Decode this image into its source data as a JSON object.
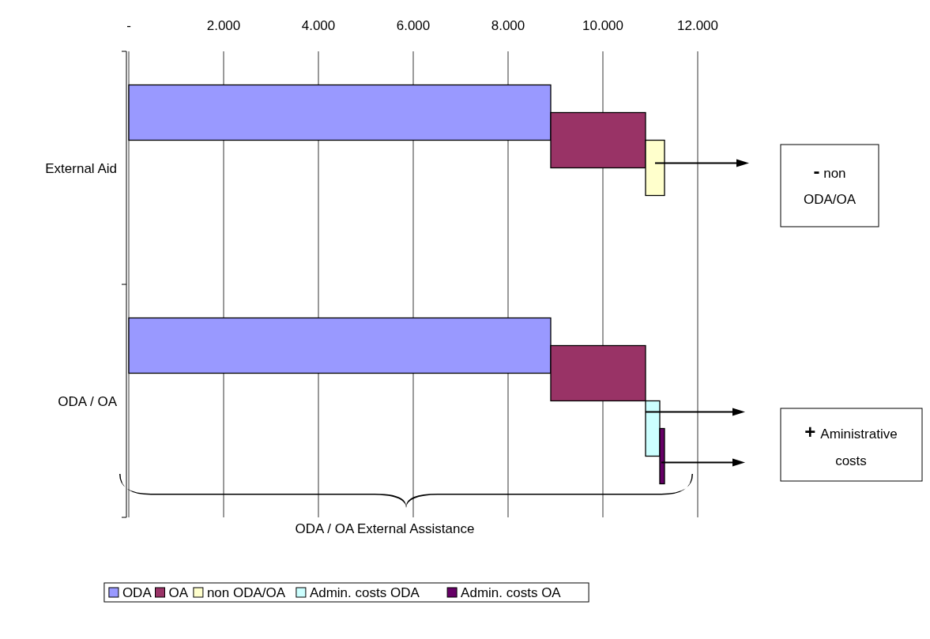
{
  "chart_data": {
    "type": "bar",
    "orientation": "horizontal",
    "stacked": true,
    "categories": [
      "External Aid",
      "ODA / OA"
    ],
    "series": [
      {
        "name": "ODA",
        "color": "#9999ff",
        "values": [
          8900,
          8900
        ]
      },
      {
        "name": "OA",
        "color": "#993366",
        "values": [
          2000,
          2000
        ]
      },
      {
        "name": "non ODA/OA",
        "color": "#ffffcc",
        "values": [
          400,
          null
        ]
      },
      {
        "name": "Admin. costs ODA",
        "color": "#ccffff",
        "values": [
          null,
          300
        ]
      },
      {
        "name": "Admin. costs OA",
        "color": "#660066",
        "values": [
          null,
          100
        ]
      }
    ],
    "xlim": [
      0,
      12000
    ],
    "xticks": [
      {
        "value": 0,
        "label": "-"
      },
      {
        "value": 2000,
        "label": "2.000"
      },
      {
        "value": 4000,
        "label": "4.000"
      },
      {
        "value": 6000,
        "label": "6.000"
      },
      {
        "value": 8000,
        "label": "8.000"
      },
      {
        "value": 10000,
        "label": "10.000"
      },
      {
        "value": 12000,
        "label": "12.000"
      }
    ],
    "grid": "x",
    "legend": "bottom",
    "annotations": [
      "- non ODA/OA",
      "+ Aministrative costs",
      "ODA / OA External Assistance"
    ]
  }
}
